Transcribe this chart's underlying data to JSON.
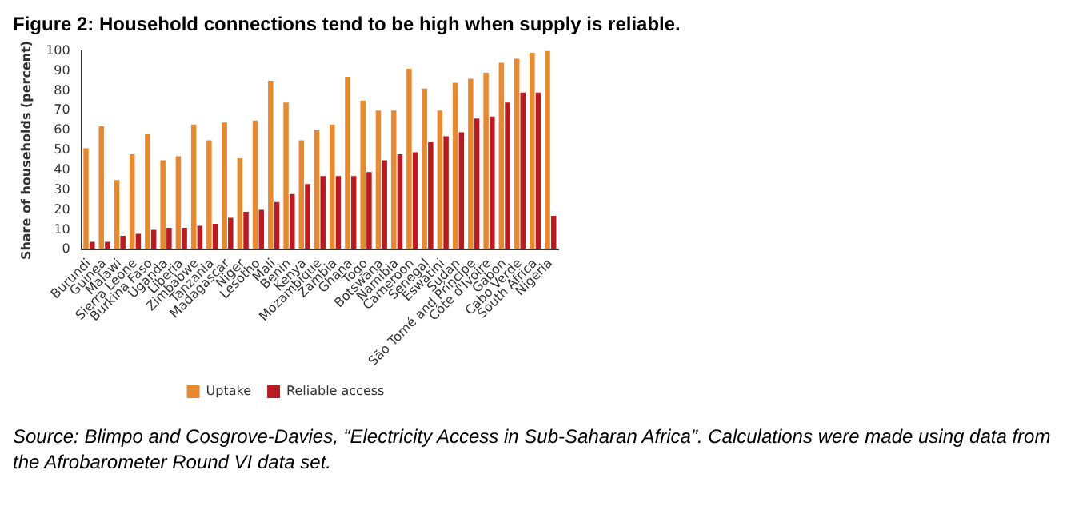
{
  "chart_data": {
    "type": "bar",
    "title": "Figure 2: Household connections tend to be high when supply is reliable.",
    "ylabel": "Share of households (percent)",
    "categories": [
      "Burundi",
      "Guinea",
      "Malawi",
      "Sierra Leone",
      "Burkina Faso",
      "Uganda",
      "Liberia",
      "Zimbabwe",
      "Tanzania",
      "Madagascar",
      "Niger",
      "Lesotho",
      "Mali",
      "Benin",
      "Kenya",
      "Mozambique",
      "Zambia",
      "Ghana",
      "Togo",
      "Botswana",
      "Namibia",
      "Cameroon",
      "Senegal",
      "Eswatini",
      "Sudan",
      "São Tomé and Príncipe",
      "Côte d'Ivoire",
      "Gabon",
      "Cabo Verde",
      "South Africa",
      "Nigeria"
    ],
    "series": [
      {
        "name": "Uptake",
        "color": "#e58a33",
        "values": [
          51,
          62,
          35,
          48,
          58,
          45,
          47,
          63,
          55,
          64,
          46,
          65,
          85,
          74,
          55,
          60,
          63,
          87,
          75,
          70,
          70,
          91,
          81,
          70,
          84,
          86,
          89,
          94,
          96,
          99,
          100
        ]
      },
      {
        "name": "Reliable access",
        "color": "#b81c22",
        "values": [
          4,
          4,
          7,
          8,
          10,
          11,
          11,
          12,
          13,
          16,
          19,
          20,
          24,
          28,
          33,
          37,
          37,
          37,
          39,
          45,
          48,
          49,
          54,
          57,
          59,
          66,
          67,
          74,
          79,
          79,
          17
        ]
      }
    ],
    "ylim": [
      0,
      100
    ],
    "yticks": [
      0,
      10,
      20,
      30,
      40,
      50,
      60,
      70,
      80,
      90,
      100
    ],
    "grid": false,
    "legend": "bottom",
    "annotations": [
      "Source: Blimpo and Cosgrove-Davies, “Electricity Access in Sub-Saharan Africa”. Calculations were made using data from the Afrobarometer Round VI data set."
    ]
  }
}
